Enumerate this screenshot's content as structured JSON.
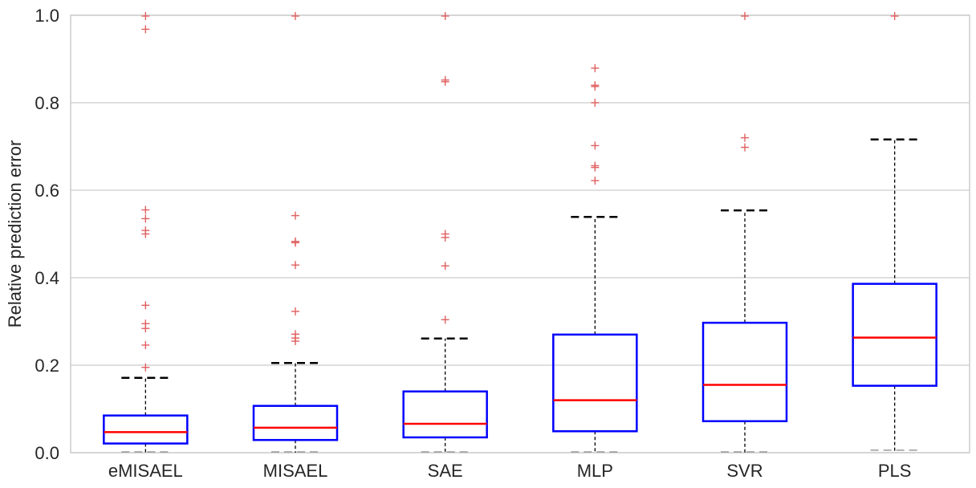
{
  "chart_data": {
    "type": "box",
    "title": "",
    "xlabel": "",
    "ylabel": "Relative prediction error",
    "ylim": [
      0,
      1.0
    ],
    "yticks": [
      "0.0",
      "0.2",
      "0.4",
      "0.6",
      "0.8",
      "1.0"
    ],
    "grid": "horizontal",
    "categories": [
      "eMISAEL",
      "MISAEL",
      "SAE",
      "MLP",
      "SVR",
      "PLS"
    ],
    "boxes": [
      {
        "name": "eMISAEL",
        "whisker_low": 0.0,
        "q1": 0.021,
        "median": 0.047,
        "q3": 0.085,
        "whisker_high": 0.171,
        "outliers": [
          0.195,
          0.246,
          0.284,
          0.295,
          0.337,
          0.5,
          0.508,
          0.535,
          0.555,
          0.968,
          1.0
        ]
      },
      {
        "name": "MISAEL",
        "whisker_low": 0.0,
        "q1": 0.029,
        "median": 0.057,
        "q3": 0.107,
        "whisker_high": 0.205,
        "outliers": [
          0.255,
          0.262,
          0.271,
          0.323,
          0.429,
          0.48,
          0.483,
          0.542,
          1.0
        ]
      },
      {
        "name": "SAE",
        "whisker_low": 0.0,
        "q1": 0.035,
        "median": 0.066,
        "q3": 0.14,
        "whisker_high": 0.261,
        "outliers": [
          0.304,
          0.427,
          0.492,
          0.5,
          0.848,
          0.852,
          1.0
        ]
      },
      {
        "name": "MLP",
        "whisker_low": 0.0,
        "q1": 0.049,
        "median": 0.12,
        "q3": 0.27,
        "whisker_high": 0.539,
        "outliers": [
          0.622,
          0.652,
          0.656,
          0.702,
          0.8,
          0.837,
          0.84,
          0.879
        ]
      },
      {
        "name": "SVR",
        "whisker_low": 0.0,
        "q1": 0.072,
        "median": 0.155,
        "q3": 0.297,
        "whisker_high": 0.554,
        "outliers": [
          0.698,
          0.72,
          1.0
        ]
      },
      {
        "name": "PLS",
        "whisker_low": 0.004,
        "q1": 0.153,
        "median": 0.263,
        "q3": 0.386,
        "whisker_high": 0.716,
        "outliers": [
          1.0
        ]
      }
    ],
    "colors": {
      "box": "#0000ff",
      "median": "#ff0000",
      "whisker": "#000000",
      "outlier": "#e06060",
      "grid": "#cccccc",
      "frame": "#cccccc"
    }
  }
}
